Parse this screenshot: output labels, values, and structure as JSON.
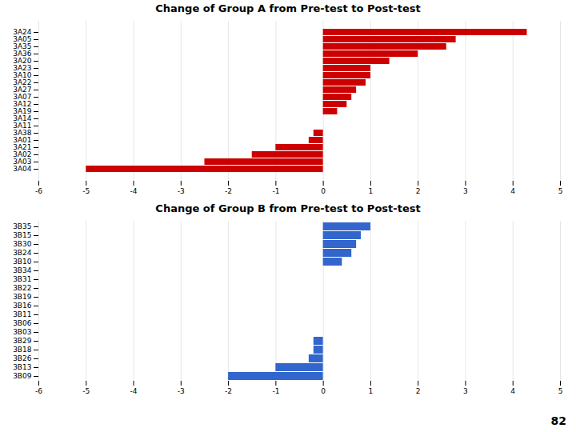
{
  "chart_data": [
    {
      "type": "bar",
      "orientation": "horizontal",
      "title": "Change of Group A from Pre-test to Post-test",
      "categories": [
        "3A24",
        "3A05",
        "3A35",
        "3A36",
        "3A20",
        "3A23",
        "3A10",
        "3A22",
        "3A27",
        "3A07",
        "3A12",
        "3A19",
        "3A14",
        "3A11",
        "3A38",
        "3A01",
        "3A21",
        "3A02",
        "3A03",
        "3A04"
      ],
      "values": [
        4.3,
        2.8,
        2.6,
        2.0,
        1.4,
        1.0,
        1.0,
        0.9,
        0.7,
        0.6,
        0.5,
        0.3,
        0.0,
        0.0,
        -0.2,
        -0.3,
        -1.0,
        -1.5,
        -2.5,
        -5.0
      ],
      "color": "#CC0000",
      "xlim": [
        -6,
        5
      ],
      "xticks": [
        -6,
        -5,
        -4,
        -3,
        -2,
        -1,
        0,
        1,
        2,
        3,
        4,
        5
      ],
      "grid": true
    },
    {
      "type": "bar",
      "orientation": "horizontal",
      "title": "Change of Group B from Pre-test to Post-test",
      "categories": [
        "3B35",
        "3B15",
        "3B30",
        "3B24",
        "3B10",
        "3B34",
        "3B31",
        "3B22",
        "3B19",
        "3B16",
        "3B11",
        "3B06",
        "3B03",
        "3B29",
        "3B18",
        "3B26",
        "3B13",
        "3B09"
      ],
      "values": [
        1.0,
        0.8,
        0.7,
        0.6,
        0.4,
        0.0,
        0.0,
        0.0,
        0.0,
        0.0,
        0.0,
        0.0,
        0.0,
        -0.2,
        -0.2,
        -0.3,
        -1.0,
        -2.0
      ],
      "color": "#3366CC",
      "xlim": [
        -6,
        5
      ],
      "xticks": [
        -6,
        -5,
        -4,
        -3,
        -2,
        -1,
        0,
        1,
        2,
        3,
        4,
        5
      ],
      "grid": true,
      "annotations": [
        "82"
      ]
    }
  ]
}
